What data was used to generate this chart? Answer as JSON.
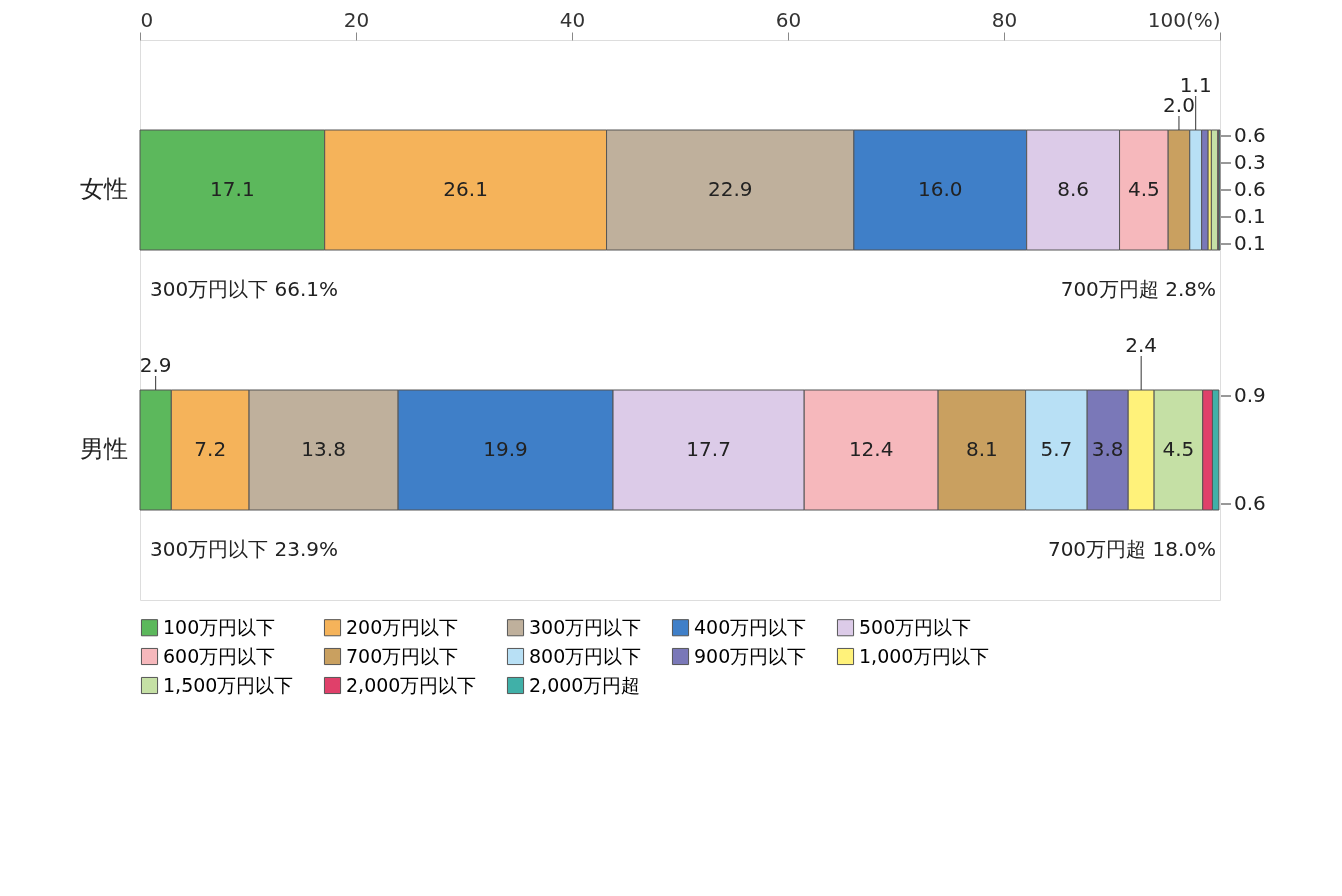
{
  "chart_data": {
    "type": "bar",
    "orientation": "horizontal",
    "stacked": true,
    "legend": "bottom",
    "grid": false,
    "categories": [
      "女性",
      "男性"
    ],
    "xlim": [
      0,
      100
    ],
    "xticks": [
      0,
      20,
      40,
      60,
      80,
      {
        "value": 100,
        "label": "100(%)"
      }
    ],
    "series": [
      {
        "name": "100万円以下",
        "color": "#5cb85c",
        "values": [
          17.1,
          2.9
        ],
        "value_labels": [
          "17.1",
          "2.9"
        ]
      },
      {
        "name": "200万円以下",
        "color": "#f5b35a",
        "values": [
          26.1,
          7.2
        ],
        "value_labels": [
          "26.1",
          "7.2"
        ]
      },
      {
        "name": "300万円以下",
        "color": "#bfb09c",
        "values": [
          22.9,
          13.8
        ],
        "value_labels": [
          "22.9",
          "13.8"
        ]
      },
      {
        "name": "400万円以下",
        "color": "#3f7fc8",
        "values": [
          16.0,
          19.9
        ],
        "value_labels": [
          "16.0",
          "19.9"
        ]
      },
      {
        "name": "500万円以下",
        "color": "#dccbe8",
        "values": [
          8.6,
          17.7
        ],
        "value_labels": [
          "8.6",
          "17.7"
        ]
      },
      {
        "name": "600万円以下",
        "color": "#f6b8bc",
        "values": [
          4.5,
          12.4
        ],
        "value_labels": [
          "4.5",
          "12.4"
        ]
      },
      {
        "name": "700万円以下",
        "color": "#c9a060",
        "values": [
          2.0,
          8.1
        ],
        "value_labels": [
          "2.0",
          "8.1"
        ]
      },
      {
        "name": "800万円以下",
        "color": "#b8e0f5",
        "values": [
          1.1,
          5.7
        ],
        "value_labels": [
          "1.1",
          "5.7"
        ]
      },
      {
        "name": "900万円以下",
        "color": "#7a78b8",
        "values": [
          0.6,
          3.8
        ],
        "value_labels": [
          "0.6",
          "3.8"
        ]
      },
      {
        "name": "1,000万円以下",
        "color": "#fff27a",
        "values": [
          0.3,
          2.4
        ],
        "value_labels": [
          "0.3",
          "2.4"
        ]
      },
      {
        "name": "1,500万円以下",
        "color": "#c5e0a5",
        "values": [
          0.6,
          4.5
        ],
        "value_labels": [
          "0.6",
          "4.5"
        ]
      },
      {
        "name": "2,000万円以下",
        "color": "#e0406a",
        "values": [
          0.1,
          0.9
        ],
        "value_labels": [
          "0.1",
          "0.9"
        ]
      },
      {
        "name": "2,000万円超",
        "color": "#40b0a8",
        "values": [
          0.1,
          0.6
        ],
        "value_labels": [
          "0.1",
          "0.6"
        ]
      }
    ],
    "annotations": [
      "300万円以下 66.1%",
      "700万円超 2.8%",
      "300万円以下 23.9%",
      "700万円超 18.0%"
    ]
  }
}
